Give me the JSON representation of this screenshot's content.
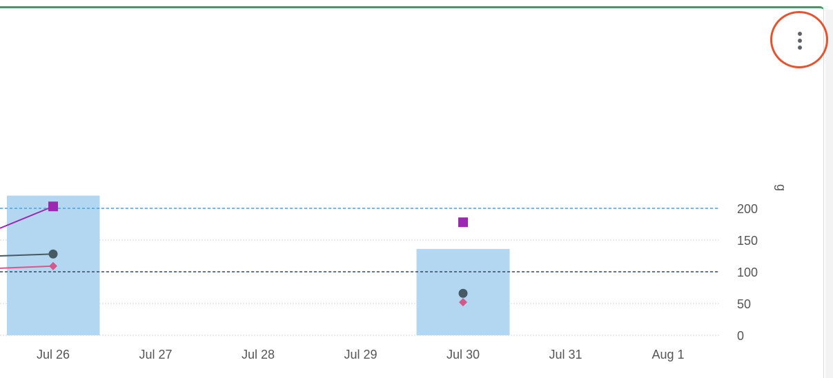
{
  "chart_data": {
    "type": "bar",
    "title": "",
    "xlabel": "",
    "ylabel": "g",
    "ylim": [
      0,
      220
    ],
    "grid": true,
    "x_categories": [
      "Jul 26",
      "Jul 27",
      "Jul 28",
      "Jul 29",
      "Jul 30",
      "Jul 31",
      "Aug 1"
    ],
    "bars": [
      {
        "x": "Jul 26",
        "value": 220
      },
      {
        "x": "Jul 30",
        "value": 136
      }
    ],
    "series": [
      {
        "marker": "square",
        "color": "#9c27b0",
        "points": [
          {
            "x": "Jul 26",
            "y": 203
          },
          {
            "x": "Jul 30",
            "y": 178
          }
        ],
        "connected_from_left": true
      },
      {
        "marker": "circle",
        "color": "#455a64",
        "points": [
          {
            "x": "Jul 26",
            "y": 128
          },
          {
            "x": "Jul 30",
            "y": 66
          }
        ],
        "connected_from_left": true
      },
      {
        "marker": "diamond",
        "color": "#d6578a",
        "points": [
          {
            "x": "Jul 26",
            "y": 109
          },
          {
            "x": "Jul 30",
            "y": 52
          }
        ],
        "connected_from_left": true
      }
    ],
    "reference_lines": [
      {
        "y": 200,
        "color": "#4a9fe0"
      },
      {
        "y": 100,
        "color": "#34495e"
      }
    ],
    "y_ticks": [
      "0",
      "50",
      "100",
      "150",
      "200"
    ],
    "y_tick_values": [
      0,
      50,
      100,
      150,
      200
    ]
  },
  "colors": {
    "bar": "#b3d7f0",
    "card_accent": "#2ea55b",
    "highlight_ring": "#e5532f"
  },
  "icons": {
    "menu": "more-vertical-icon"
  }
}
